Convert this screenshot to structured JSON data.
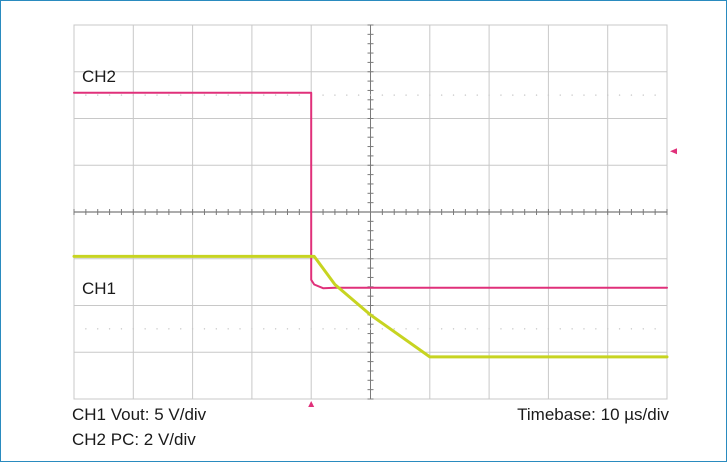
{
  "chart_data": {
    "type": "line",
    "title": "",
    "xlabel": "",
    "ylabel": "",
    "grid": true,
    "x_divisions": 10,
    "y_divisions": 8,
    "channel_labels": [
      "CH2",
      "CH1"
    ],
    "series": [
      {
        "name": "CH2",
        "color": "#e0307a",
        "x_div": [
          0,
          4.0,
          4.0,
          4.05,
          4.2,
          4.4,
          10
        ],
        "y_div": [
          6.55,
          6.55,
          2.55,
          2.45,
          2.37,
          2.38,
          2.38
        ]
      },
      {
        "name": "CH1",
        "color": "#c7d421",
        "x_div": [
          0,
          4.05,
          4.4,
          5.0,
          6.0,
          10
        ],
        "y_div": [
          3.05,
          3.05,
          2.45,
          1.8,
          0.9,
          0.9
        ]
      }
    ]
  },
  "captions": {
    "ch1_scale": "CH1 Vout: 5 V/div",
    "ch2_scale": "CH2 PC: 2 V/div",
    "timebase": "Timebase: 10 µs/div"
  },
  "colors": {
    "grid": "#c8c8c8",
    "center_axis": "#7a7a7a",
    "marker": "#e0307a",
    "frame_border": "#2a8bbf"
  }
}
